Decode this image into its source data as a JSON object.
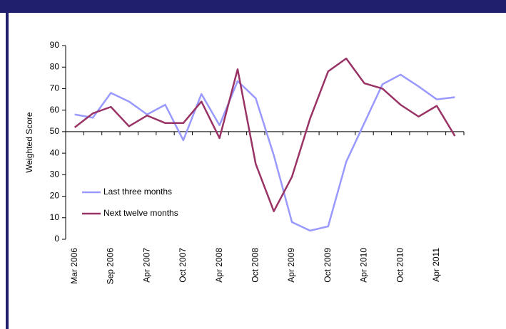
{
  "chart_data": {
    "type": "line",
    "y_axis_label": "Weighted Score",
    "categories": [
      "Mar 2006",
      null,
      "Sep 2006",
      null,
      "Apr 2007",
      null,
      "Oct 2007",
      null,
      "Apr 2008",
      null,
      "Oct 2008",
      null,
      "Apr 2009",
      null,
      "Oct 2009",
      null,
      "Apr 2010",
      null,
      "Oct 2010",
      null,
      "Apr 2011",
      null
    ],
    "series": [
      {
        "name": "Last three months",
        "color": "#9999ff",
        "values": [
          58,
          56.5,
          68,
          64,
          58,
          62.5,
          46,
          67.5,
          53,
          73.5,
          65.5,
          39,
          8,
          4,
          6,
          36,
          54,
          72,
          76.5,
          71,
          65,
          66
        ]
      },
      {
        "name": "Next twelve months",
        "color": "#993366",
        "values": [
          52,
          58.5,
          61.5,
          52.5,
          57.5,
          54,
          54,
          64,
          47,
          79,
          35,
          13,
          29,
          56,
          78,
          84,
          72.5,
          70,
          62.5,
          57,
          62,
          48
        ]
      }
    ],
    "ylim": [
      0,
      90
    ],
    "yticks": [
      0,
      10,
      20,
      30,
      40,
      50,
      60,
      70,
      80,
      90
    ],
    "x_axis_crosses": 50,
    "grid": false,
    "legend": "lower left"
  }
}
